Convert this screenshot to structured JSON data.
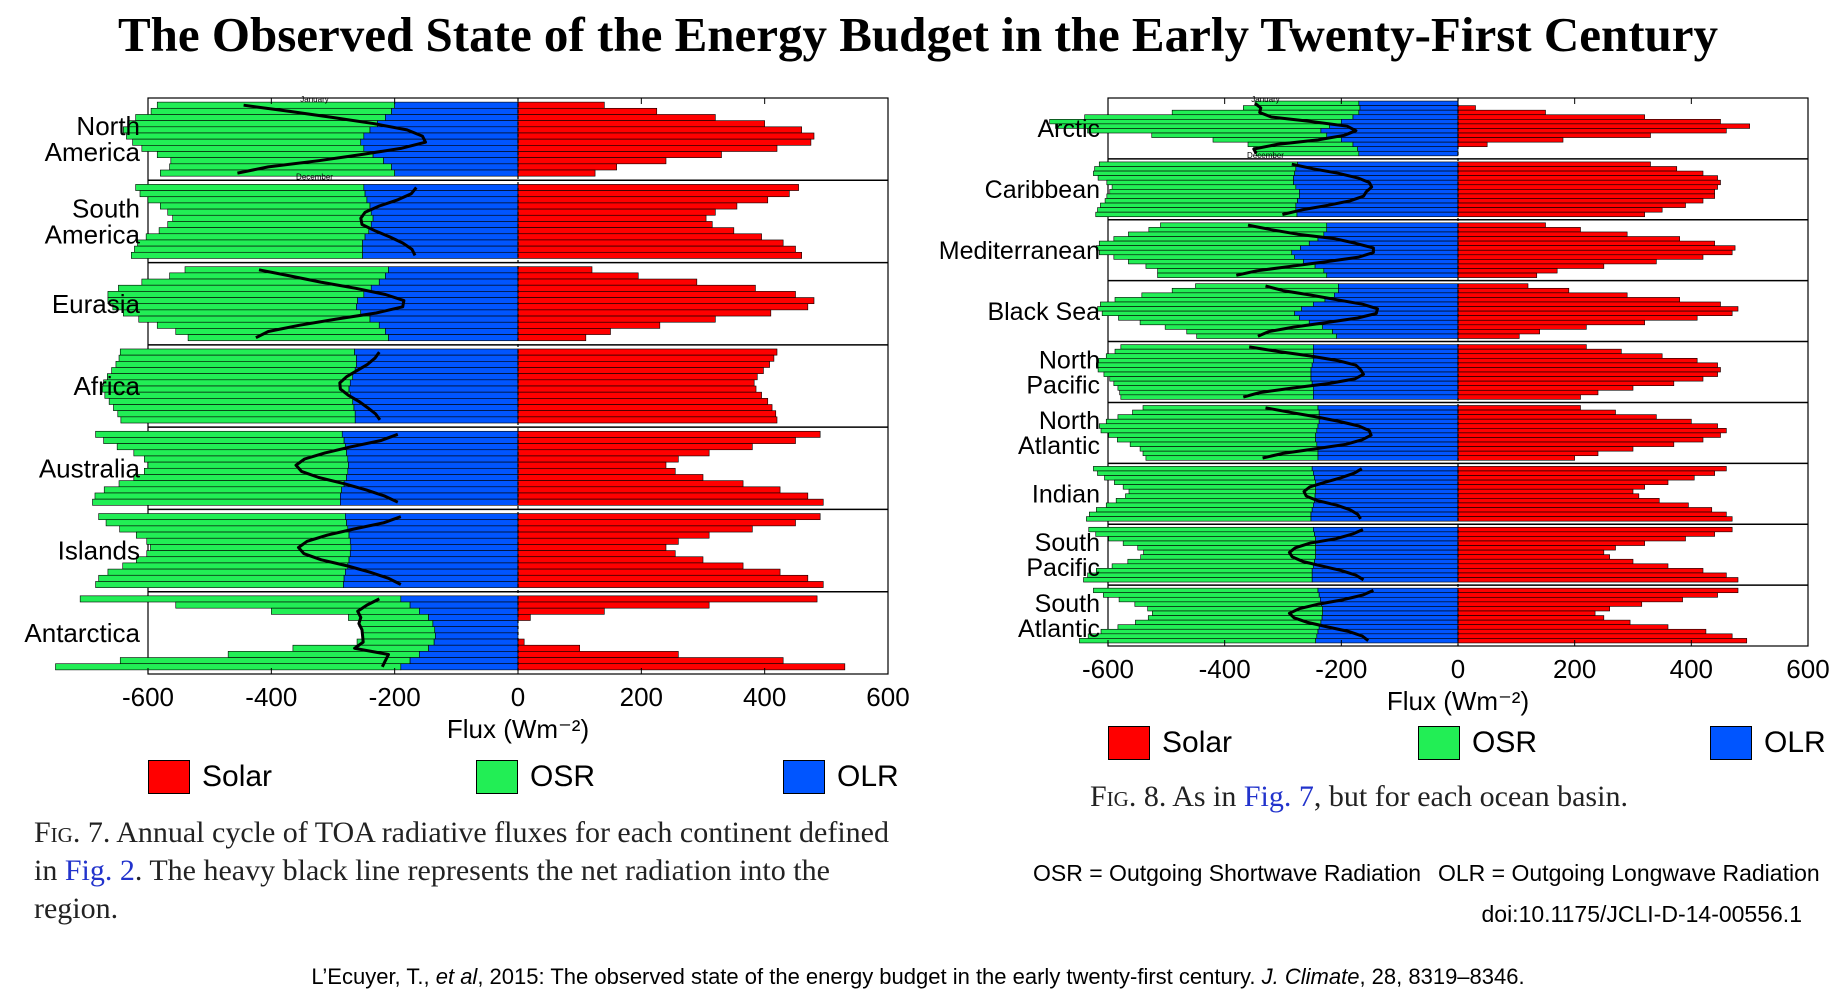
{
  "title": "The Observed State of the Energy Budget in the Early Twenty-First Century",
  "colors": {
    "solar": "#ff0000",
    "osr": "#22ee55",
    "olr": "#0055ff",
    "net": "#000000"
  },
  "legend": {
    "solar": "Solar",
    "osr": "OSR",
    "olr": "OLR"
  },
  "fig7": {
    "caption_label": "Fig. 7.",
    "caption_pre": " Annual cycle of TOA radiative fluxes for each continent defined in ",
    "caption_link": "Fig. 2",
    "caption_post": ". The heavy black line represents the net radiation into the region."
  },
  "fig8": {
    "caption_label": "Fig. 8.",
    "caption_pre": " As in ",
    "caption_link": "Fig. 7",
    "caption_post": ", but for each ocean basin."
  },
  "abbreviations": {
    "osr": "OSR = Outgoing Shortwave Radiation",
    "olr": "OLR = Outgoing Longwave Radiation"
  },
  "doi": "doi:10.1175/JCLI-D-14-00556.1",
  "citation": {
    "authors": "L’Ecuyer, T., ",
    "etal": "et al",
    "middle": ", 2015: The observed state of the energy budget in the early twenty-first century. ",
    "journal": "J. Climate",
    "end": ", 28, 8319–8346."
  },
  "chart_data": [
    {
      "type": "bar",
      "orientation": "horizontal",
      "layout": "annual cycle, 12 monthly bars per panel (January at top, December at bottom)",
      "xlabel": "Flux (Wm⁻²)",
      "xlim": [
        -600,
        600
      ],
      "xticks": [
        -600,
        -400,
        -200,
        0,
        200,
        400,
        600
      ],
      "month_labels": {
        "first": "January",
        "last": "December"
      },
      "panels": [
        {
          "name": "North America",
          "solar": [
            140,
            225,
            320,
            400,
            460,
            480,
            475,
            420,
            330,
            240,
            160,
            125
          ],
          "olr": [
            -200,
            -205,
            -215,
            -228,
            -240,
            -250,
            -255,
            -250,
            -235,
            -218,
            -205,
            -200
          ],
          "osr": [
            -385,
            -390,
            -405,
            -405,
            -400,
            -385,
            -370,
            -360,
            -350,
            -345,
            -360,
            -380
          ]
        },
        {
          "name": "South America",
          "solar": [
            455,
            440,
            405,
            355,
            320,
            305,
            315,
            350,
            395,
            430,
            450,
            460
          ],
          "olr": [
            -250,
            -248,
            -245,
            -240,
            -238,
            -235,
            -238,
            -242,
            -248,
            -252,
            -252,
            -252
          ],
          "osr": [
            -370,
            -365,
            -355,
            -340,
            -330,
            -325,
            -330,
            -340,
            -355,
            -365,
            -370,
            -375
          ]
        },
        {
          "name": "Eurasia",
          "solar": [
            120,
            195,
            290,
            385,
            450,
            480,
            470,
            410,
            320,
            230,
            150,
            110
          ],
          "olr": [
            -210,
            -215,
            -225,
            -238,
            -250,
            -260,
            -262,
            -255,
            -240,
            -225,
            -215,
            -210
          ],
          "osr": [
            -330,
            -350,
            -385,
            -410,
            -415,
            -405,
            -395,
            -385,
            -375,
            -360,
            -340,
            -325
          ]
        },
        {
          "name": "Africa",
          "solar": [
            420,
            415,
            408,
            398,
            388,
            383,
            386,
            395,
            405,
            412,
            418,
            420
          ],
          "olr": [
            -265,
            -262,
            -262,
            -264,
            -268,
            -272,
            -274,
            -272,
            -268,
            -266,
            -264,
            -264
          ],
          "osr": [
            -380,
            -385,
            -390,
            -395,
            -398,
            -400,
            -400,
            -398,
            -395,
            -390,
            -385,
            -380
          ]
        },
        {
          "name": "Australia",
          "solar": [
            490,
            450,
            380,
            310,
            260,
            240,
            255,
            300,
            365,
            425,
            470,
            495
          ],
          "olr": [
            -285,
            -282,
            -280,
            -278,
            -276,
            -275,
            -276,
            -278,
            -282,
            -286,
            -288,
            -288
          ],
          "osr": [
            -400,
            -390,
            -370,
            -345,
            -330,
            -325,
            -330,
            -345,
            -365,
            -385,
            -398,
            -402
          ]
        },
        {
          "name": "Islands",
          "solar": [
            490,
            450,
            380,
            310,
            260,
            240,
            255,
            300,
            365,
            425,
            470,
            495
          ],
          "olr": [
            -280,
            -278,
            -276,
            -274,
            -272,
            -271,
            -272,
            -274,
            -276,
            -280,
            -282,
            -283
          ],
          "osr": [
            -400,
            -390,
            -370,
            -345,
            -330,
            -325,
            -330,
            -345,
            -365,
            -385,
            -398,
            -402
          ]
        },
        {
          "name": "Antarctica",
          "solar": [
            485,
            310,
            140,
            20,
            0,
            0,
            0,
            10,
            100,
            260,
            430,
            530
          ],
          "olr": [
            -190,
            -175,
            -160,
            -145,
            -138,
            -135,
            -134,
            -136,
            -145,
            -160,
            -175,
            -190
          ],
          "osr": [
            -520,
            -380,
            -240,
            -130,
            -120,
            -118,
            -118,
            -125,
            -220,
            -310,
            -470,
            -560
          ]
        }
      ]
    },
    {
      "type": "bar",
      "orientation": "horizontal",
      "layout": "annual cycle, 12 monthly bars per panel (January at top, December at bottom)",
      "xlabel": "Flux (Wm⁻²)",
      "xlim": [
        -600,
        600
      ],
      "xticks": [
        -600,
        -400,
        -200,
        0,
        200,
        400,
        600
      ],
      "month_labels": {
        "first": "January",
        "last": "December"
      },
      "panels": [
        {
          "name": "Arctic",
          "solar": [
            0,
            30,
            150,
            320,
            450,
            500,
            460,
            330,
            180,
            50,
            0,
            0
          ],
          "olr": [
            -170,
            -168,
            -170,
            -180,
            -200,
            -220,
            -235,
            -225,
            -200,
            -180,
            -172,
            -170
          ],
          "osr": [
            -178,
            -200,
            -320,
            -460,
            -500,
            -470,
            -400,
            -300,
            -220,
            -180,
            -178,
            -176
          ]
        },
        {
          "name": "Caribbean",
          "solar": [
            330,
            375,
            420,
            445,
            450,
            445,
            440,
            440,
            420,
            390,
            350,
            320
          ],
          "olr": [
            -275,
            -278,
            -280,
            -282,
            -282,
            -278,
            -272,
            -272,
            -275,
            -278,
            -278,
            -276
          ],
          "osr": [
            -340,
            -345,
            -345,
            -335,
            -320,
            -315,
            -325,
            -330,
            -330,
            -335,
            -340,
            -345
          ]
        },
        {
          "name": "Mediterranean",
          "solar": [
            150,
            210,
            290,
            380,
            440,
            475,
            470,
            420,
            340,
            250,
            170,
            135
          ],
          "olr": [
            -225,
            -225,
            -230,
            -240,
            -255,
            -270,
            -285,
            -280,
            -265,
            -245,
            -230,
            -225
          ],
          "osr": [
            -285,
            -305,
            -335,
            -350,
            -360,
            -350,
            -330,
            -310,
            -300,
            -290,
            -285,
            -290
          ]
        },
        {
          "name": "Black Sea",
          "solar": [
            120,
            190,
            290,
            380,
            450,
            480,
            470,
            410,
            320,
            220,
            140,
            105
          ],
          "olr": [
            -205,
            -205,
            -212,
            -228,
            -248,
            -268,
            -280,
            -272,
            -255,
            -232,
            -215,
            -208
          ],
          "osr": [
            -245,
            -285,
            -330,
            -360,
            -365,
            -350,
            -330,
            -310,
            -290,
            -270,
            -250,
            -240
          ]
        },
        {
          "name": "North Pacific",
          "solar": [
            220,
            280,
            350,
            410,
            445,
            450,
            445,
            420,
            370,
            300,
            240,
            210
          ],
          "olr": [
            -248,
            -248,
            -248,
            -248,
            -250,
            -252,
            -252,
            -252,
            -250,
            -248,
            -248,
            -248
          ],
          "osr": [
            -330,
            -340,
            -355,
            -368,
            -370,
            -365,
            -355,
            -345,
            -340,
            -335,
            -332,
            -330
          ]
        },
        {
          "name": "North Atlantic",
          "solar": [
            210,
            270,
            340,
            400,
            445,
            460,
            450,
            420,
            370,
            300,
            240,
            200
          ],
          "olr": [
            -240,
            -238,
            -238,
            -238,
            -240,
            -242,
            -244,
            -244,
            -242,
            -240,
            -240,
            -240
          ],
          "osr": [
            -300,
            -320,
            -345,
            -365,
            -375,
            -370,
            -355,
            -340,
            -320,
            -305,
            -300,
            -295
          ]
        },
        {
          "name": "Indian",
          "solar": [
            460,
            440,
            405,
            360,
            320,
            300,
            310,
            345,
            395,
            435,
            460,
            470
          ],
          "olr": [
            -250,
            -248,
            -246,
            -244,
            -244,
            -244,
            -245,
            -246,
            -248,
            -250,
            -252,
            -252
          ],
          "osr": [
            -375,
            -370,
            -360,
            -345,
            -330,
            -320,
            -325,
            -340,
            -355,
            -370,
            -380,
            -385
          ]
        },
        {
          "name": "South Pacific",
          "solar": [
            470,
            440,
            390,
            320,
            270,
            250,
            260,
            300,
            360,
            420,
            460,
            480
          ],
          "olr": [
            -248,
            -246,
            -244,
            -244,
            -244,
            -244,
            -244,
            -246,
            -248,
            -250,
            -250,
            -250
          ],
          "osr": [
            -385,
            -375,
            -355,
            -330,
            -305,
            -295,
            -300,
            -320,
            -345,
            -370,
            -385,
            -392
          ]
        },
        {
          "name": "South Atlantic",
          "solar": [
            480,
            445,
            385,
            315,
            260,
            235,
            250,
            295,
            360,
            425,
            470,
            495
          ],
          "olr": [
            -240,
            -238,
            -236,
            -234,
            -232,
            -232,
            -233,
            -235,
            -238,
            -240,
            -242,
            -244
          ],
          "osr": [
            -385,
            -370,
            -345,
            -320,
            -300,
            -292,
            -298,
            -318,
            -345,
            -372,
            -392,
            -405
          ]
        }
      ]
    }
  ]
}
